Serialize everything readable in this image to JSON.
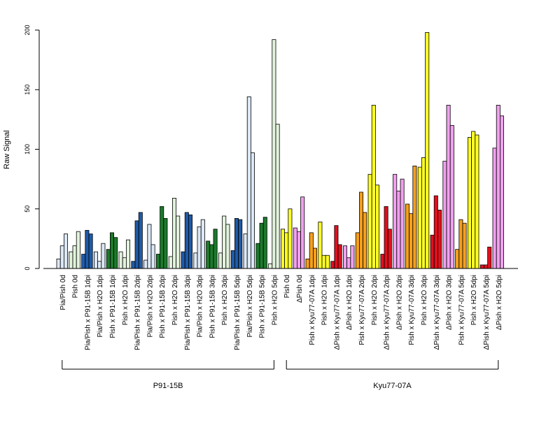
{
  "chart_data": {
    "type": "bar",
    "title": "",
    "xlabel": "",
    "ylabel": "Raw Signal",
    "ylim": [
      0,
      200
    ],
    "yticks": [
      0,
      50,
      100,
      150,
      200
    ],
    "bars_per_group": 3,
    "palette": {
      "light_green": "#e2f2dc",
      "light_blue": "#dce8f5",
      "dark_blue": "#1f5ba8",
      "dark_green": "#1c7a2c",
      "yellow": "#ffff26",
      "violet": "#f2a0ef",
      "orange": "#f5a01c",
      "red": "#e0101e"
    },
    "categories": [
      {
        "label": "Pia/Pish 0d",
        "color": "light_blue",
        "values": [
          8,
          19,
          29
        ]
      },
      {
        "label": "Pish 0d",
        "color": "light_green",
        "values": [
          14,
          19,
          31
        ]
      },
      {
        "label": "Pia/Pish x P91-15B 1dpi",
        "color": "dark_blue",
        "values": [
          12,
          32,
          29
        ]
      },
      {
        "label": "Pia/Pish x H2O 1dpi",
        "color": "light_blue",
        "values": [
          14,
          6,
          21
        ]
      },
      {
        "label": "Pish x P91-15B 1dpi",
        "color": "dark_green",
        "values": [
          16,
          30,
          26
        ]
      },
      {
        "label": "Pish x H2O 1dpi",
        "color": "light_green",
        "values": [
          14,
          9,
          24
        ]
      },
      {
        "label": "Pia/Pish x P91-15B 2dpi",
        "color": "dark_blue",
        "values": [
          6,
          40,
          47
        ]
      },
      {
        "label": "Pia/Pish x H2O 2dpi",
        "color": "light_blue",
        "values": [
          7,
          37,
          20
        ]
      },
      {
        "label": "Pish x P91-15B 2dpi",
        "color": "dark_green",
        "values": [
          12,
          52,
          42
        ]
      },
      {
        "label": "Pish x H2O 2dpi",
        "color": "light_green",
        "values": [
          10,
          59,
          44
        ]
      },
      {
        "label": "Pia/Pish x P91-15B 3dpi",
        "color": "dark_blue",
        "values": [
          14,
          47,
          45
        ]
      },
      {
        "label": "Pia/Pish x H2O 3dpi",
        "color": "light_blue",
        "values": [
          13,
          35,
          41
        ]
      },
      {
        "label": "Pish x P91-15B 3dpi",
        "color": "dark_green",
        "values": [
          23,
          20,
          33
        ]
      },
      {
        "label": "Pish x H2O 3dpi",
        "color": "light_green",
        "values": [
          13,
          44,
          37
        ]
      },
      {
        "label": "Pia/Pish x P91-15B 5dpi",
        "color": "dark_blue",
        "values": [
          15,
          42,
          41
        ]
      },
      {
        "label": "Pia/Pish x H2O 5dpi",
        "color": "light_blue",
        "values": [
          29,
          144,
          97
        ]
      },
      {
        "label": "Pish x P91-15B 5dpi",
        "color": "dark_green",
        "values": [
          21,
          38,
          43
        ]
      },
      {
        "label": "Pish x H2O 5dpi",
        "color": "light_green",
        "values": [
          4,
          192,
          121
        ]
      },
      {
        "label": "Pish 0d",
        "color": "yellow",
        "values": [
          33,
          30,
          50
        ]
      },
      {
        "label": "ΔPish 0d",
        "color": "violet",
        "values": [
          34,
          31,
          60
        ]
      },
      {
        "label": "Pish x Kyu77-07A 1dpi",
        "color": "orange",
        "values": [
          8,
          30,
          17
        ]
      },
      {
        "label": "Pish x H2O 1dpi",
        "color": "yellow",
        "values": [
          39,
          11,
          11
        ]
      },
      {
        "label": "ΔPish x Kyu77-07A 1dpi",
        "color": "red",
        "values": [
          6,
          36,
          20
        ]
      },
      {
        "label": "ΔPish x H2O 1dpi",
        "color": "violet",
        "values": [
          19,
          9,
          19
        ]
      },
      {
        "label": "Pish x Kyu77-07A 2dpi",
        "color": "orange",
        "values": [
          30,
          64,
          47
        ]
      },
      {
        "label": "Pish x H2O 2dpi",
        "color": "yellow",
        "values": [
          79,
          137,
          70
        ]
      },
      {
        "label": "ΔPish x Kyu77-07A 2dpi",
        "color": "red",
        "values": [
          12,
          52,
          33
        ]
      },
      {
        "label": "ΔPish x H2O 2dpi",
        "color": "violet",
        "values": [
          79,
          65,
          75
        ]
      },
      {
        "label": "Pish x Kyu77-07A 3dpi",
        "color": "orange",
        "values": [
          54,
          46,
          86
        ]
      },
      {
        "label": "Pish x H2O 3dpi",
        "color": "yellow",
        "values": [
          85,
          93,
          198
        ]
      },
      {
        "label": "ΔPish x Kyu77-07A 3dpi",
        "color": "red",
        "values": [
          28,
          61,
          49
        ]
      },
      {
        "label": "ΔPish x H2O 3dpi",
        "color": "violet",
        "values": [
          90,
          137,
          120
        ]
      },
      {
        "label": "Pish x Kyu77-07A 5dpi",
        "color": "orange",
        "values": [
          16,
          41,
          38
        ]
      },
      {
        "label": "Pish x H2O 5dpi",
        "color": "yellow",
        "values": [
          110,
          115,
          112
        ]
      },
      {
        "label": "ΔPish x Kyu77-07A 5dpi",
        "color": "red",
        "values": [
          3,
          3,
          18
        ]
      },
      {
        "label": "ΔPish x H2O 5dpi",
        "color": "violet",
        "values": [
          101,
          137,
          128
        ]
      }
    ],
    "brackets": [
      {
        "label": "P91-15B",
        "first": 0,
        "last": 17
      },
      {
        "label": "Kyu77-07A",
        "first": 18,
        "last": 35
      }
    ]
  }
}
